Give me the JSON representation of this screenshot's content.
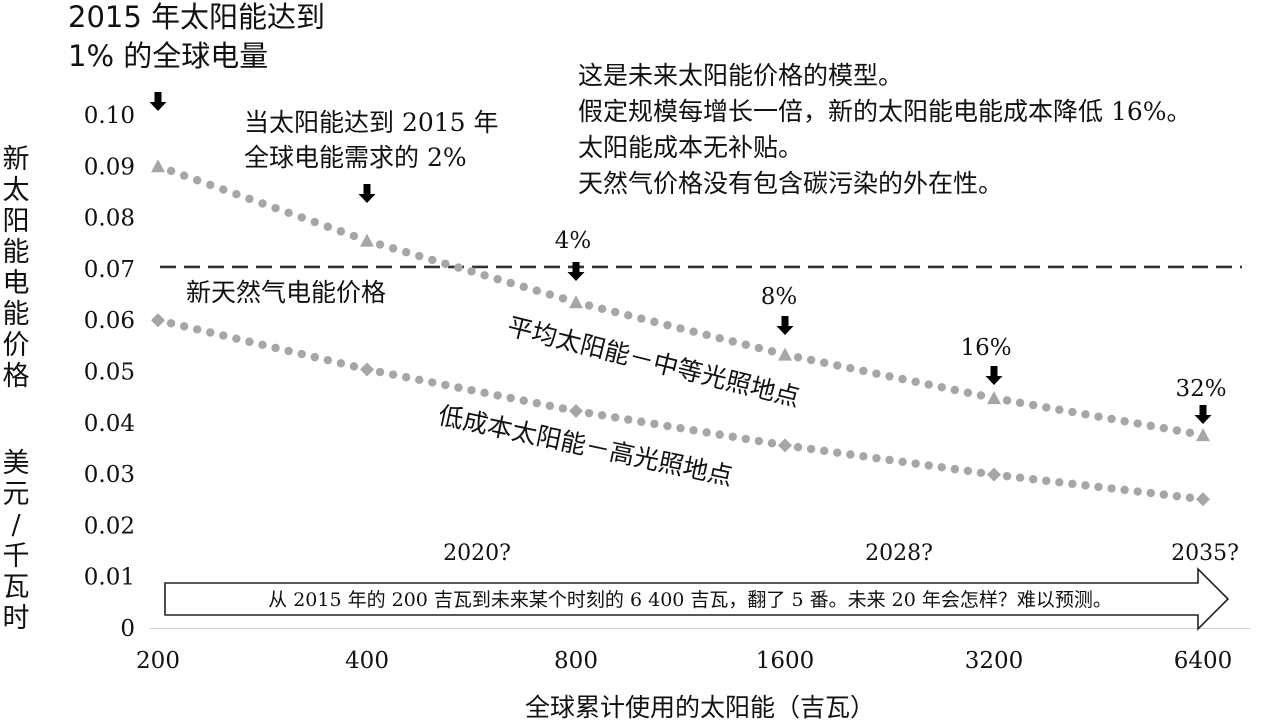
{
  "chart_data": {
    "type": "scatter",
    "y_axis": {
      "label_chars": [
        "新",
        "太",
        "阳",
        "能",
        "电",
        "能",
        "价",
        "格"
      ],
      "unit_chars": [
        "美",
        "元",
        "/",
        "千",
        "瓦",
        "时"
      ],
      "ticks": [
        "0",
        "0.01",
        "0.02",
        "0.03",
        "0.04",
        "0.05",
        "0.06",
        "0.07",
        "0.08",
        "0.09",
        "0.10"
      ],
      "range": [
        0,
        0.1
      ],
      "grid": false
    },
    "x_axis": {
      "label": "全球累计使用的太阳能（吉瓦）",
      "scale": "log",
      "ticks": [
        "200",
        "400",
        "800",
        "1600",
        "3200",
        "6400"
      ],
      "tick_values": [
        200,
        400,
        800,
        1600,
        3200,
        6400
      ]
    },
    "series": [
      {
        "name": "平均太阳能－中等光照地点",
        "marker": "triangle",
        "color": "#a6a6a6",
        "x": [
          200,
          400,
          800,
          1600,
          3200,
          6400
        ],
        "y": [
          0.09,
          0.0755,
          0.0635,
          0.0533,
          0.0448,
          0.0376
        ]
      },
      {
        "name": "低成本太阳能－高光照地点",
        "marker": "diamond",
        "color": "#a6a6a6",
        "x": [
          200,
          400,
          800,
          1600,
          3200,
          6400
        ],
        "y": [
          0.06,
          0.0504,
          0.0423,
          0.0356,
          0.0299,
          0.0251
        ]
      }
    ],
    "reference_line": {
      "name": "新天然气电能价格",
      "y": 0.07,
      "color": "#333333"
    },
    "share_markers": [
      {
        "x": 200,
        "label": "2015 年太阳能达到\n1% 的全球电量"
      },
      {
        "x": 400,
        "label": "当太阳能达到 2015 年\n全球电能需求的 2%"
      },
      {
        "x": 800,
        "label": "4%"
      },
      {
        "x": 1600,
        "label": "8%"
      },
      {
        "x": 3200,
        "label": "16%"
      },
      {
        "x": 6400,
        "label": "32%"
      }
    ],
    "notes": [
      "这是未来太阳能价格的模型。",
      "假定规模每增长一倍，新的太阳能电能成本降低 16%。",
      "太阳能成本无补贴。",
      "天然气价格没有包含碳污染的外在性。"
    ],
    "year_labels": [
      {
        "x": 800,
        "label": "2020?"
      },
      {
        "x": 3200,
        "label": "2028?"
      },
      {
        "x": 6400,
        "label": "2035?"
      }
    ],
    "timeline_text": "从 2015 年的 200 吉瓦到未来某个时刻的 6 400 吉瓦，翻了 5 番。未来 20 年会怎样？难以预测。"
  }
}
